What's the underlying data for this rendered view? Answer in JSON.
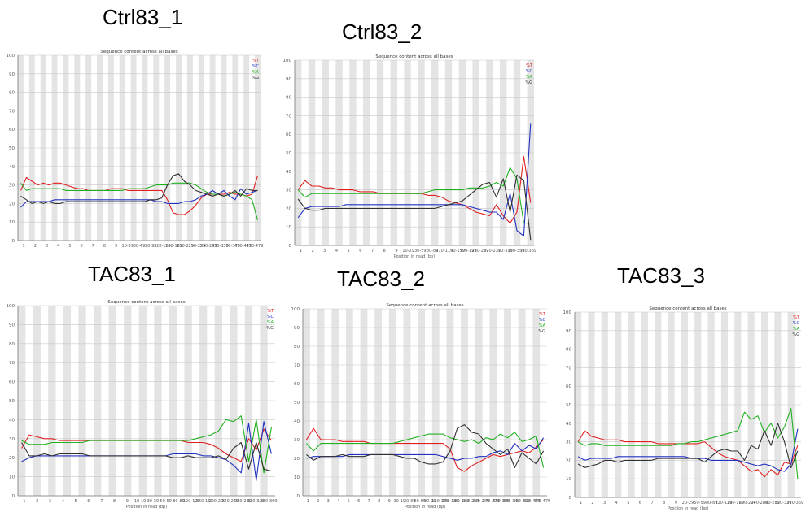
{
  "colors": {
    "T": "#e02020",
    "C": "#2030c0",
    "A": "#20b020",
    "G": "#303030",
    "band": "#e4e4e4",
    "grid": "#c8c8c8"
  },
  "chart_data": [
    {
      "type": "line",
      "panel_title": "Ctrl83_1",
      "title": "Sequence content across all bases",
      "xlabel": "Position in read (bp)",
      "ylabel": "",
      "ylim": [
        0,
        100
      ],
      "yticks": [
        0,
        10,
        20,
        30,
        40,
        50,
        60,
        70,
        80,
        90,
        100
      ],
      "xticks": [
        "1",
        "2",
        "3",
        "4",
        "5",
        "6",
        "7",
        "8",
        "9",
        "10-29",
        "30-49",
        "90-99",
        "120-129",
        "160-169",
        "210-219",
        "250-259",
        "290-299",
        "330-339",
        "370-379",
        "410-429",
        "470-479"
      ],
      "legend": [
        "%T",
        "%C",
        "%A",
        "%G"
      ],
      "series": [
        {
          "name": "%T",
          "color": "T",
          "values": [
            27,
            34,
            32,
            30,
            31,
            30,
            31,
            31,
            30,
            29,
            28,
            28,
            27,
            27,
            27,
            27,
            28,
            28,
            28,
            27,
            27,
            27,
            27,
            27,
            27,
            27,
            22,
            15,
            14,
            14,
            16,
            19,
            23,
            25,
            25,
            25,
            25,
            26,
            25,
            25,
            24,
            25,
            35
          ]
        },
        {
          "name": "%C",
          "color": "C",
          "values": [
            18,
            21,
            21,
            21,
            21,
            21,
            22,
            22,
            22,
            22,
            22,
            22,
            22,
            22,
            22,
            22,
            22,
            22,
            22,
            22,
            22,
            22,
            22,
            22,
            21,
            21,
            20,
            20,
            20,
            21,
            21,
            22,
            24,
            25,
            27,
            25,
            27,
            24,
            22,
            28,
            25,
            26,
            27
          ]
        },
        {
          "name": "%A",
          "color": "A",
          "values": [
            31,
            27,
            28,
            28,
            28,
            28,
            28,
            28,
            27,
            27,
            27,
            27,
            27,
            27,
            27,
            27,
            27,
            27,
            27,
            28,
            28,
            28,
            28,
            29,
            30,
            30,
            30,
            31,
            31,
            31,
            31,
            30,
            28,
            26,
            25,
            25,
            24,
            25,
            26,
            25,
            24,
            22,
            11
          ]
        },
        {
          "name": "%G",
          "color": "G",
          "values": [
            24,
            22,
            20,
            21,
            20,
            21,
            20,
            20,
            21,
            21,
            21,
            21,
            21,
            21,
            21,
            21,
            21,
            21,
            21,
            21,
            21,
            21,
            21,
            22,
            22,
            23,
            30,
            35,
            36,
            32,
            30,
            27,
            26,
            25,
            24,
            25,
            24,
            25,
            27,
            24,
            28,
            27,
            27
          ]
        }
      ]
    },
    {
      "type": "line",
      "panel_title": "Ctrl83_2",
      "title": "Sequence content across all bases",
      "xlabel": "Position in read (bp)",
      "ylabel": "",
      "ylim": [
        0,
        100
      ],
      "yticks": [
        0,
        10,
        20,
        30,
        40,
        50,
        60,
        70,
        80,
        90,
        100
      ],
      "xticks": [
        "1",
        "2",
        "3",
        "4",
        "5",
        "6",
        "7",
        "8",
        "9",
        "10-29",
        "30-59",
        "80-89",
        "110-119",
        "150-159",
        "190-199",
        "230-239",
        "270-279",
        "310-319",
        "350-359",
        "360-369"
      ],
      "legend": [
        "%T",
        "%C",
        "%A",
        "%G"
      ],
      "series": [
        {
          "name": "%T",
          "color": "T",
          "values": [
            30,
            35,
            32,
            32,
            31,
            31,
            30,
            30,
            30,
            29,
            29,
            29,
            28,
            28,
            28,
            28,
            28,
            28,
            28,
            27,
            27,
            26,
            24,
            23,
            22,
            20,
            18,
            17,
            16,
            22,
            16,
            12,
            18,
            48,
            23
          ]
        },
        {
          "name": "%C",
          "color": "C",
          "values": [
            15,
            20,
            21,
            21,
            21,
            21,
            21,
            22,
            22,
            22,
            22,
            22,
            22,
            22,
            22,
            22,
            22,
            22,
            22,
            22,
            22,
            22,
            22,
            22,
            22,
            21,
            20,
            19,
            18,
            18,
            14,
            28,
            8,
            5,
            66
          ]
        },
        {
          "name": "%A",
          "color": "A",
          "values": [
            30,
            26,
            28,
            28,
            28,
            28,
            28,
            28,
            28,
            28,
            28,
            28,
            28,
            28,
            28,
            28,
            28,
            28,
            28,
            29,
            30,
            30,
            30,
            30,
            30,
            31,
            31,
            31,
            32,
            34,
            32,
            42,
            36,
            12,
            12
          ]
        },
        {
          "name": "%G",
          "color": "G",
          "values": [
            25,
            20,
            19,
            19,
            20,
            20,
            20,
            20,
            20,
            20,
            20,
            20,
            20,
            20,
            20,
            20,
            20,
            20,
            20,
            20,
            20,
            21,
            22,
            23,
            24,
            27,
            30,
            33,
            34,
            26,
            36,
            18,
            38,
            35,
            3
          ]
        }
      ]
    },
    {
      "type": "line",
      "panel_title": "TAC83_1",
      "title": "Sequence content across all bases",
      "xlabel": "Position in read (bp)",
      "ylabel": "",
      "ylim": [
        0,
        100
      ],
      "yticks": [
        0,
        10,
        20,
        30,
        40,
        50,
        60,
        70,
        80,
        90,
        100
      ],
      "xticks": [
        "1",
        "2",
        "3",
        "4",
        "5",
        "6",
        "7",
        "8",
        "9",
        "10-19",
        "30-39",
        "50-59",
        "80-89",
        "120-129",
        "160-169",
        "200-209",
        "240-249",
        "280-289",
        "320-329",
        "360-369"
      ],
      "legend": [
        "%T",
        "%C",
        "%A",
        "%G"
      ],
      "series": [
        {
          "name": "%T",
          "color": "T",
          "values": [
            25,
            32,
            31,
            30,
            30,
            29,
            29,
            29,
            29,
            29,
            29,
            29,
            29,
            29,
            29,
            29,
            29,
            29,
            29,
            29,
            29,
            29,
            28,
            28,
            28,
            27,
            25,
            22,
            20,
            18,
            30,
            24,
            35,
            29
          ]
        },
        {
          "name": "%C",
          "color": "C",
          "values": [
            18,
            20,
            21,
            21,
            21,
            21,
            21,
            21,
            21,
            21,
            21,
            21,
            21,
            21,
            21,
            21,
            21,
            21,
            21,
            21,
            22,
            22,
            22,
            22,
            21,
            21,
            20,
            19,
            16,
            12,
            38,
            8,
            39,
            22
          ]
        },
        {
          "name": "%A",
          "color": "A",
          "values": [
            29,
            27,
            27,
            27,
            28,
            28,
            28,
            28,
            28,
            29,
            29,
            29,
            29,
            29,
            29,
            29,
            29,
            29,
            29,
            29,
            29,
            29,
            29,
            30,
            31,
            32,
            34,
            40,
            39,
            42,
            18,
            40,
            12,
            36
          ]
        },
        {
          "name": "%G",
          "color": "G",
          "values": [
            28,
            21,
            21,
            22,
            21,
            22,
            22,
            22,
            22,
            21,
            21,
            21,
            21,
            21,
            21,
            21,
            21,
            21,
            21,
            21,
            20,
            20,
            21,
            20,
            20,
            20,
            21,
            19,
            25,
            28,
            14,
            28,
            14,
            13
          ]
        }
      ]
    },
    {
      "type": "line",
      "panel_title": "TAC83_2",
      "title": "Sequence content across all bases",
      "xlabel": "Position in read (bp)",
      "ylabel": "",
      "ylim": [
        0,
        100
      ],
      "yticks": [
        0,
        10,
        20,
        30,
        40,
        50,
        60,
        70,
        80,
        90,
        100
      ],
      "xticks": [
        "1",
        "2",
        "3",
        "4",
        "5",
        "6",
        "7",
        "8",
        "9",
        "10-19",
        "30-39",
        "60-69",
        "90-99",
        "120-129",
        "150-159",
        "180-189",
        "210-219",
        "240-249",
        "270-279",
        "300-309",
        "340-349",
        "380-389",
        "420-429",
        "470-479"
      ],
      "legend": [
        "%T",
        "%C",
        "%A",
        "%G"
      ],
      "series": [
        {
          "name": "%T",
          "color": "T",
          "values": [
            30,
            36,
            30,
            30,
            30,
            29,
            29,
            29,
            29,
            28,
            28,
            28,
            28,
            28,
            28,
            28,
            28,
            28,
            28,
            28,
            25,
            15,
            13,
            16,
            18,
            20,
            22,
            21,
            22,
            23,
            24,
            23,
            26,
            30
          ]
        },
        {
          "name": "%C",
          "color": "C",
          "values": [
            20,
            21,
            21,
            21,
            21,
            21,
            22,
            22,
            22,
            22,
            22,
            22,
            22,
            22,
            22,
            22,
            22,
            22,
            22,
            21,
            20,
            19,
            20,
            20,
            21,
            21,
            23,
            24,
            22,
            28,
            24,
            27,
            25,
            31
          ]
        },
        {
          "name": "%A",
          "color": "A",
          "values": [
            28,
            24,
            28,
            28,
            28,
            28,
            28,
            28,
            28,
            28,
            28,
            28,
            28,
            29,
            30,
            31,
            32,
            33,
            33,
            33,
            31,
            30,
            29,
            30,
            28,
            31,
            30,
            33,
            31,
            34,
            29,
            30,
            32,
            15
          ]
        },
        {
          "name": "%G",
          "color": "G",
          "values": [
            22,
            19,
            21,
            21,
            21,
            22,
            21,
            21,
            21,
            22,
            22,
            22,
            22,
            21,
            20,
            20,
            18,
            17,
            17,
            18,
            24,
            36,
            38,
            34,
            33,
            28,
            25,
            22,
            25,
            15,
            23,
            20,
            17,
            24
          ]
        }
      ]
    },
    {
      "type": "line",
      "panel_title": "TAC83_3",
      "title": "Sequence content across all bases",
      "xlabel": "Position in read (bp)",
      "ylabel": "",
      "ylim": [
        0,
        100
      ],
      "yticks": [
        0,
        10,
        20,
        30,
        40,
        50,
        60,
        70,
        80,
        90,
        100
      ],
      "xticks": [
        "1",
        "2",
        "3",
        "4",
        "5",
        "6",
        "7",
        "8",
        "9",
        "20-29",
        "50-59",
        "80-89",
        "120-129",
        "160-169",
        "200-209",
        "240-249",
        "280-289",
        "320-329",
        "360-369"
      ],
      "legend": [
        "%T",
        "%C",
        "%A",
        "%G"
      ],
      "series": [
        {
          "name": "%T",
          "color": "T",
          "values": [
            30,
            36,
            33,
            32,
            31,
            31,
            31,
            30,
            30,
            30,
            30,
            30,
            29,
            29,
            29,
            29,
            29,
            29,
            29,
            30,
            27,
            24,
            22,
            21,
            20,
            17,
            14,
            15,
            11,
            15,
            12,
            19,
            18,
            28
          ]
        },
        {
          "name": "%C",
          "color": "C",
          "values": [
            22,
            20,
            21,
            21,
            21,
            21,
            22,
            22,
            22,
            22,
            22,
            22,
            22,
            22,
            22,
            22,
            22,
            21,
            21,
            21,
            20,
            20,
            20,
            20,
            20,
            19,
            18,
            17,
            18,
            17,
            15,
            14,
            18,
            37
          ]
        },
        {
          "name": "%A",
          "color": "A",
          "values": [
            30,
            28,
            29,
            29,
            28,
            28,
            28,
            28,
            28,
            28,
            28,
            28,
            28,
            28,
            28,
            29,
            29,
            30,
            30,
            31,
            32,
            33,
            34,
            35,
            36,
            46,
            42,
            44,
            35,
            40,
            32,
            38,
            48,
            10
          ]
        },
        {
          "name": "%G",
          "color": "G",
          "values": [
            18,
            16,
            17,
            18,
            20,
            20,
            19,
            20,
            20,
            20,
            20,
            20,
            21,
            21,
            21,
            21,
            21,
            21,
            21,
            19,
            22,
            25,
            26,
            25,
            25,
            20,
            28,
            26,
            36,
            28,
            40,
            30,
            16,
            25
          ]
        }
      ]
    }
  ]
}
